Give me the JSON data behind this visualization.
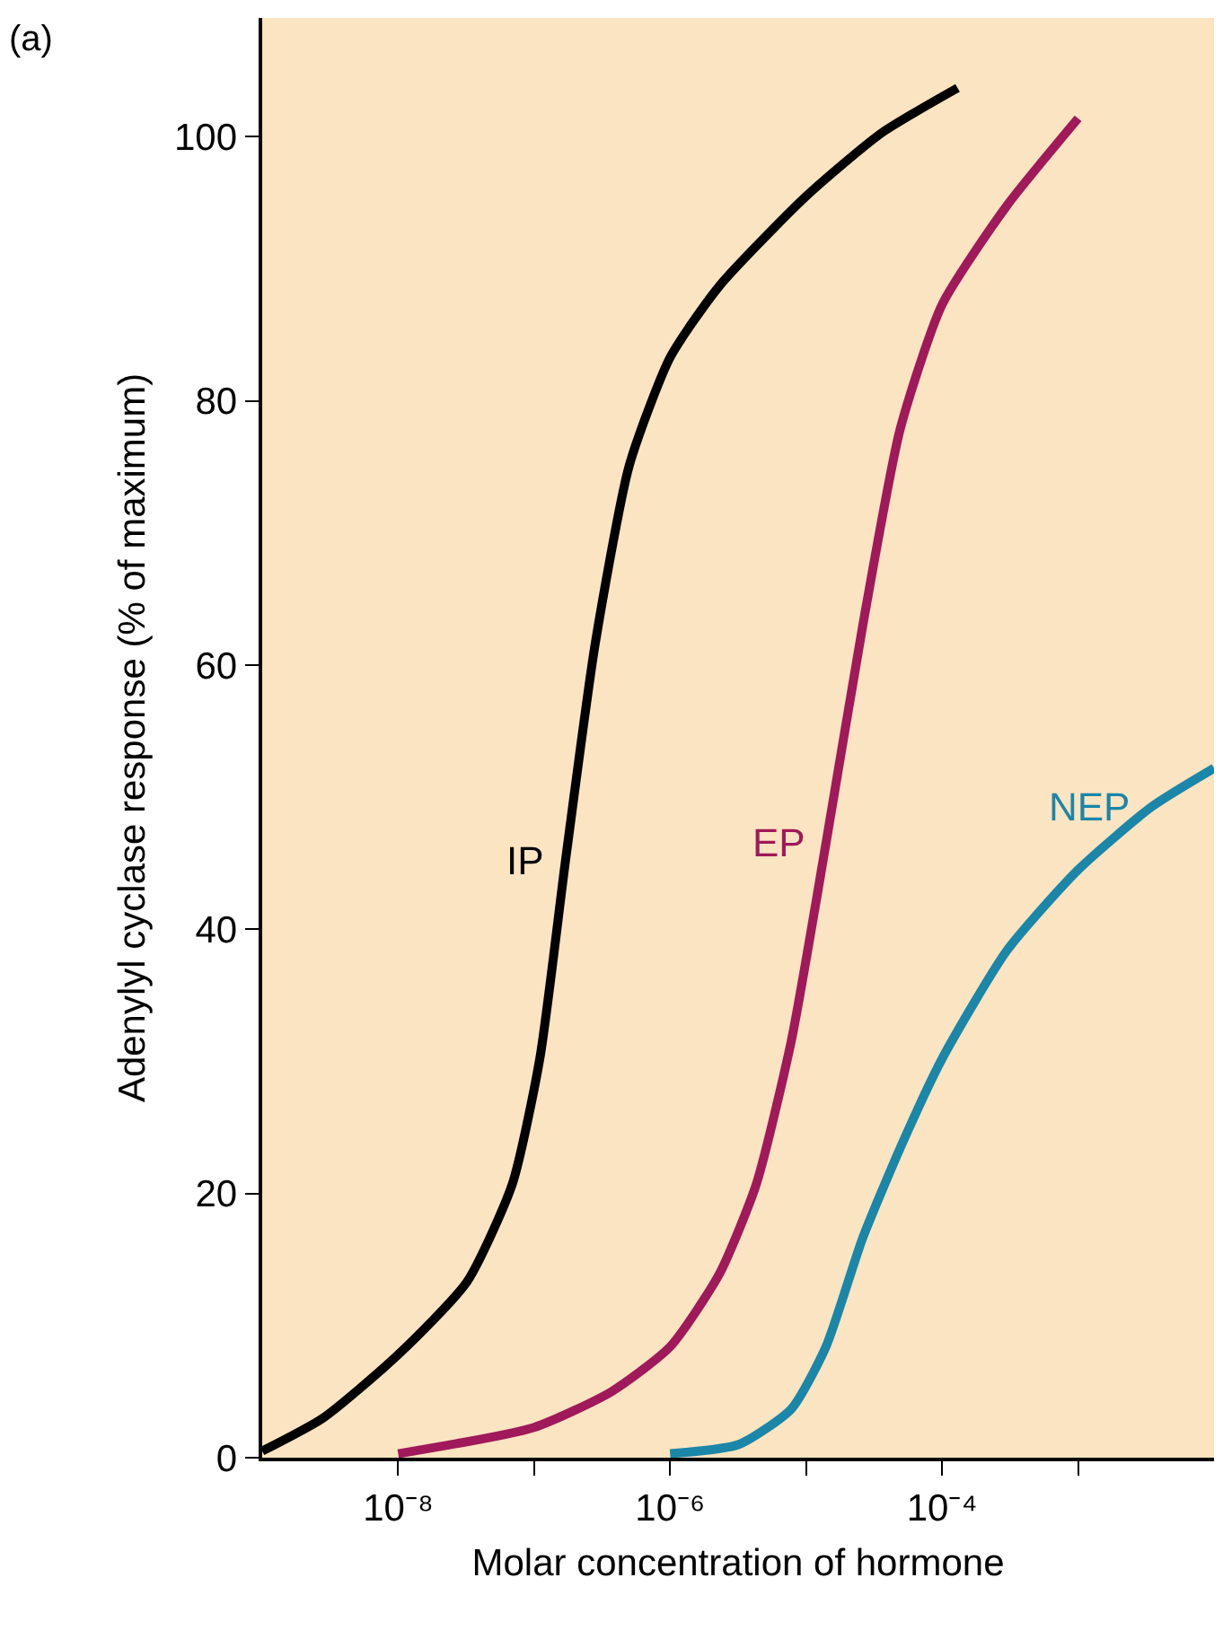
{
  "chart_data": {
    "type": "line",
    "xlabel": "Molar concentration of hormone",
    "ylabel": "Adenylyl cyclase response (% of maximum)",
    "annotations": [
      "(a)"
    ],
    "log": "x",
    "grid": false,
    "legend": false,
    "marker": "none",
    "line_style": "solid",
    "xlim": [
      1e-09,
      0.01
    ],
    "xticks": [
      {
        "value": 1e-08,
        "label": "10⁻⁸"
      },
      {
        "value": 1e-07,
        "label": null
      },
      {
        "value": 1e-06,
        "label": "10⁻⁶"
      },
      {
        "value": 1e-05,
        "label": null
      },
      {
        "value": 0.0001,
        "label": "10⁻⁴"
      },
      {
        "value": 0.001,
        "label": null
      }
    ],
    "ylim": [
      0,
      109
    ],
    "yticks": [
      0,
      20,
      40,
      60,
      80,
      100
    ],
    "series": [
      {
        "name": "IP",
        "color": "#000000",
        "x": [
          1e-09,
          2.8e-09,
          1e-08,
          3.2e-08,
          6.9e-08,
          1.1e-07,
          1.7e-07,
          2.8e-07,
          5e-07,
          1e-06,
          2.3e-06,
          1e-05,
          3.6e-05,
          0.00013
        ],
        "values": [
          0.5,
          3.0,
          7.8,
          13.3,
          20.7,
          30.2,
          45.2,
          61.5,
          75.1,
          83.3,
          88.7,
          95.5,
          100.3,
          103.7
        ]
      },
      {
        "name": "EP",
        "color": "#a0195a",
        "x": [
          1e-08,
          1e-07,
          3.7e-07,
          1e-06,
          2.3e-06,
          4.3e-06,
          7.8e-06,
          1.4e-05,
          2.6e-05,
          4.9e-05,
          0.0001,
          0.0003,
          0.001
        ],
        "values": [
          0.3,
          2.3,
          5.0,
          8.4,
          13.9,
          20.7,
          31.6,
          46.5,
          62.9,
          77.8,
          87.3,
          94.8,
          101.4
        ]
      },
      {
        "name": "NEP",
        "color": "#1a86a8",
        "x": [
          1e-06,
          3.2e-06,
          7.8e-06,
          1.4e-05,
          2.6e-05,
          4.9e-05,
          0.0001,
          0.0003,
          0.001,
          0.0035,
          0.01
        ],
        "values": [
          0.3,
          1.0,
          3.7,
          8.4,
          16.6,
          23.4,
          30.2,
          38.4,
          44.5,
          49.3,
          52.2
        ]
      }
    ]
  }
}
